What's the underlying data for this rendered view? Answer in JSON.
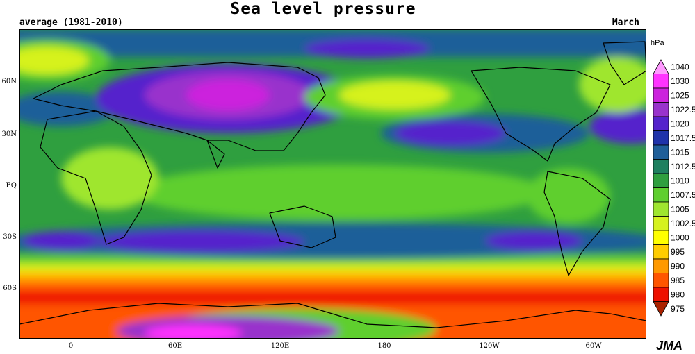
{
  "header": {
    "title": "Sea level pressure",
    "subtitle": "average (1981-2010)",
    "month": "March"
  },
  "axes": {
    "lat_labels": [
      "60N",
      "30N",
      "EQ",
      "30S",
      "60S"
    ],
    "lon_labels": [
      "0",
      "60E",
      "120E",
      "180",
      "120W",
      "60W"
    ]
  },
  "legend": {
    "unit": "hPa",
    "levels": [
      {
        "label": "1040",
        "color": "#ff99ff"
      },
      {
        "label": "1030",
        "color": "#ff33ff"
      },
      {
        "label": "1025",
        "color": "#cc22dd"
      },
      {
        "label": "1022.5",
        "color": "#9933cc"
      },
      {
        "label": "1020",
        "color": "#5522cc"
      },
      {
        "label": "1017.5",
        "color": "#1f33aa"
      },
      {
        "label": "1015",
        "color": "#1f5f99"
      },
      {
        "label": "1012.5",
        "color": "#1f8060"
      },
      {
        "label": "1010",
        "color": "#2f9f3f"
      },
      {
        "label": "1007.5",
        "color": "#5fcf2f"
      },
      {
        "label": "1005",
        "color": "#9fe62f"
      },
      {
        "label": "1002.5",
        "color": "#d6f21f"
      },
      {
        "label": "1000",
        "color": "#ffff00"
      },
      {
        "label": "995",
        "color": "#ffcc00"
      },
      {
        "label": "990",
        "color": "#ff9900"
      },
      {
        "label": "985",
        "color": "#ff5500"
      },
      {
        "label": "980",
        "color": "#ee1100"
      },
      {
        "label": "975",
        "color": "#aa2200"
      }
    ]
  },
  "logo": "JMA"
}
